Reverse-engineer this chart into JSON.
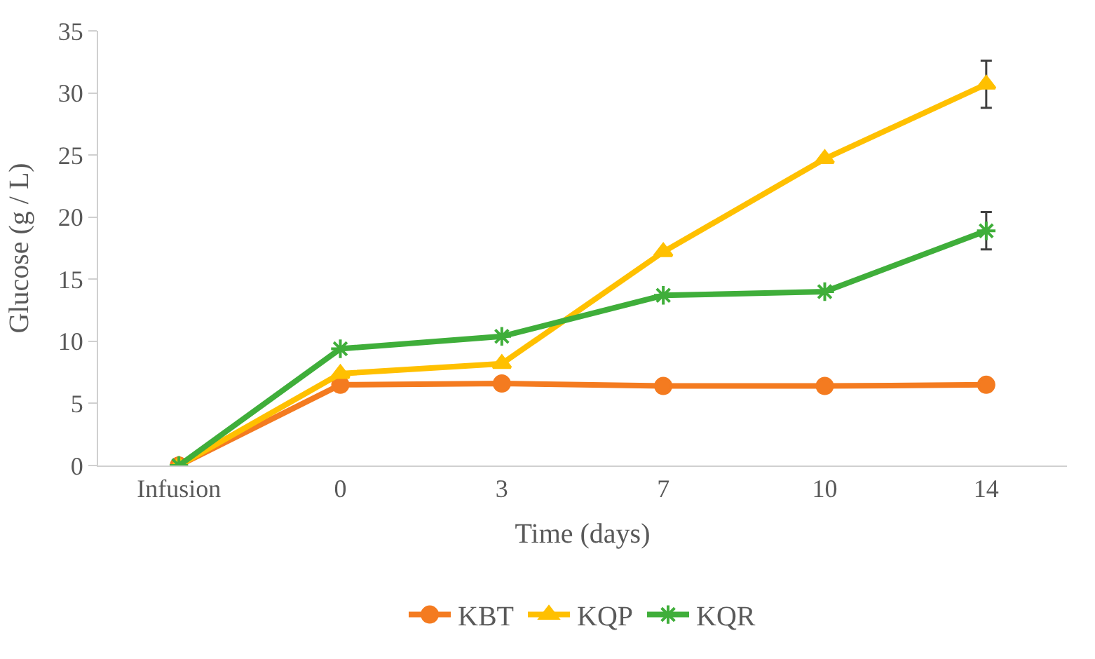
{
  "chart_data": {
    "type": "line",
    "xlabel": "Time (days)",
    "ylabel": "Glucose (g / L)",
    "categories": [
      "Infusion",
      "0",
      "3",
      "7",
      "10",
      "14"
    ],
    "ylim": [
      0,
      35
    ],
    "yticks": [
      0,
      5,
      10,
      15,
      20,
      25,
      30,
      35
    ],
    "legend": "bottom",
    "series": [
      {
        "name": "KBT",
        "color": "#f47b20",
        "marker": "circle",
        "values": [
          0,
          6.5,
          6.6,
          6.4,
          6.4,
          6.5
        ]
      },
      {
        "name": "KQP",
        "color": "#ffc000",
        "marker": "triangle",
        "values": [
          0,
          7.4,
          8.2,
          17.2,
          24.7,
          30.7
        ],
        "errors": [
          null,
          null,
          null,
          null,
          null,
          1.9
        ]
      },
      {
        "name": "KQR",
        "color": "#3fae3a",
        "marker": "cross",
        "values": [
          0,
          9.4,
          10.4,
          13.7,
          14.0,
          18.9
        ],
        "errors": [
          null,
          null,
          null,
          null,
          null,
          1.5
        ]
      }
    ]
  }
}
